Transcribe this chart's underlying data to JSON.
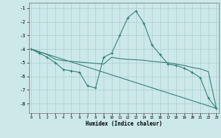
{
  "series_main": {
    "x": [
      0,
      1,
      2,
      3,
      4,
      5,
      6,
      7,
      8,
      9,
      10,
      11,
      12,
      13,
      14,
      15,
      16,
      17,
      18,
      19,
      20,
      21,
      22,
      23
    ],
    "y": [
      -4.0,
      -4.3,
      -4.6,
      -5.0,
      -5.5,
      -5.6,
      -5.7,
      -6.7,
      -6.85,
      -4.6,
      -4.3,
      -3.0,
      -1.7,
      -1.2,
      -2.1,
      -3.7,
      -4.4,
      -5.1,
      -5.2,
      -5.4,
      -5.7,
      -6.1,
      -7.6,
      -8.35
    ]
  },
  "series_smooth": {
    "x": [
      0,
      1,
      2,
      3,
      4,
      5,
      6,
      7,
      8,
      9,
      10,
      11,
      12,
      13,
      14,
      15,
      16,
      17,
      18,
      19,
      20,
      21,
      22,
      23
    ],
    "y": [
      -4.0,
      -4.2,
      -4.4,
      -4.75,
      -4.85,
      -4.9,
      -4.95,
      -5.0,
      -5.05,
      -5.1,
      -4.6,
      -4.7,
      -4.75,
      -4.78,
      -4.82,
      -4.9,
      -4.95,
      -5.0,
      -5.1,
      -5.2,
      -5.35,
      -5.45,
      -5.65,
      -8.35
    ]
  },
  "series_line": {
    "x": [
      0,
      23
    ],
    "y": [
      -4.0,
      -8.35
    ]
  },
  "xlabel": "Humidex (Indice chaleur)",
  "xlim": [
    -0.3,
    23.3
  ],
  "ylim": [
    -8.7,
    -0.6
  ],
  "yticks": [
    -8,
    -7,
    -6,
    -5,
    -4,
    -3,
    -2,
    -1
  ],
  "xticks": [
    0,
    1,
    2,
    3,
    4,
    5,
    6,
    7,
    8,
    9,
    10,
    11,
    12,
    13,
    14,
    15,
    16,
    17,
    18,
    19,
    20,
    21,
    22,
    23
  ],
  "bg_color": "#cce8e8",
  "grid_color": "#aacccc",
  "line_color": "#2e7d70"
}
